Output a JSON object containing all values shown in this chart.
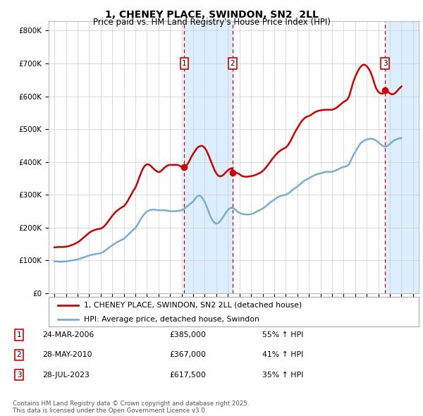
{
  "title": "1, CHENEY PLACE, SWINDON, SN2  2LL",
  "subtitle": "Price paid vs. HM Land Registry's House Price Index (HPI)",
  "ylabel_ticks": [
    "£0",
    "£100K",
    "£200K",
    "£300K",
    "£400K",
    "£500K",
    "£600K",
    "£700K",
    "£800K"
  ],
  "ylim": [
    0,
    830000
  ],
  "xlim_start": 1995,
  "xlim_end": 2026,
  "background_color": "#ffffff",
  "grid_color": "#cccccc",
  "hpi_line_color": "#7aadd4",
  "price_line_color": "#cc0000",
  "shaded_region_color": "#ddeeff",
  "transactions": [
    {
      "label": "1",
      "date_str": "24-MAR-2006",
      "price": 385000,
      "pct": "55%",
      "x": 2006.23
    },
    {
      "label": "2",
      "date_str": "28-MAY-2010",
      "price": 367000,
      "pct": "41%",
      "x": 2010.41
    },
    {
      "label": "3",
      "date_str": "28-JUL-2023",
      "price": 617500,
      "pct": "35%",
      "x": 2023.58
    }
  ],
  "legend_label_price": "1, CHENEY PLACE, SWINDON, SN2 2LL (detached house)",
  "legend_label_hpi": "HPI: Average price, detached house, Swindon",
  "footnote": "Contains HM Land Registry data © Crown copyright and database right 2025.\nThis data is licensed under the Open Government Licence v3.0.",
  "hpi_data": [
    [
      1995.0,
      97000
    ],
    [
      1995.17,
      97000
    ],
    [
      1995.33,
      96500
    ],
    [
      1995.5,
      96000
    ],
    [
      1995.67,
      96000
    ],
    [
      1995.83,
      96500
    ],
    [
      1996.0,
      97000
    ],
    [
      1996.17,
      98000
    ],
    [
      1996.33,
      99000
    ],
    [
      1996.5,
      100000
    ],
    [
      1996.67,
      101000
    ],
    [
      1996.83,
      102000
    ],
    [
      1997.0,
      103000
    ],
    [
      1997.17,
      105000
    ],
    [
      1997.33,
      107000
    ],
    [
      1997.5,
      109000
    ],
    [
      1997.67,
      111000
    ],
    [
      1997.83,
      113000
    ],
    [
      1998.0,
      115000
    ],
    [
      1998.17,
      117000
    ],
    [
      1998.33,
      118000
    ],
    [
      1998.5,
      119000
    ],
    [
      1998.67,
      120000
    ],
    [
      1998.83,
      121000
    ],
    [
      1999.0,
      122000
    ],
    [
      1999.17,
      125000
    ],
    [
      1999.33,
      129000
    ],
    [
      1999.5,
      133000
    ],
    [
      1999.67,
      138000
    ],
    [
      1999.83,
      142000
    ],
    [
      2000.0,
      146000
    ],
    [
      2000.17,
      150000
    ],
    [
      2000.33,
      154000
    ],
    [
      2000.5,
      157000
    ],
    [
      2000.67,
      160000
    ],
    [
      2000.83,
      163000
    ],
    [
      2001.0,
      166000
    ],
    [
      2001.17,
      171000
    ],
    [
      2001.33,
      177000
    ],
    [
      2001.5,
      183000
    ],
    [
      2001.67,
      189000
    ],
    [
      2001.83,
      194000
    ],
    [
      2002.0,
      199000
    ],
    [
      2002.17,
      208000
    ],
    [
      2002.33,
      218000
    ],
    [
      2002.5,
      228000
    ],
    [
      2002.67,
      237000
    ],
    [
      2002.83,
      244000
    ],
    [
      2003.0,
      249000
    ],
    [
      2003.17,
      252000
    ],
    [
      2003.33,
      254000
    ],
    [
      2003.5,
      255000
    ],
    [
      2003.67,
      255000
    ],
    [
      2003.83,
      254000
    ],
    [
      2004.0,
      253000
    ],
    [
      2004.17,
      253000
    ],
    [
      2004.33,
      253000
    ],
    [
      2004.5,
      253000
    ],
    [
      2004.67,
      252000
    ],
    [
      2004.83,
      251000
    ],
    [
      2005.0,
      250000
    ],
    [
      2005.17,
      250000
    ],
    [
      2005.33,
      250000
    ],
    [
      2005.5,
      250000
    ],
    [
      2005.67,
      251000
    ],
    [
      2005.83,
      252000
    ],
    [
      2006.0,
      253000
    ],
    [
      2006.17,
      256000
    ],
    [
      2006.33,
      260000
    ],
    [
      2006.5,
      265000
    ],
    [
      2006.67,
      270000
    ],
    [
      2006.83,
      275000
    ],
    [
      2007.0,
      280000
    ],
    [
      2007.17,
      288000
    ],
    [
      2007.33,
      295000
    ],
    [
      2007.5,
      298000
    ],
    [
      2007.67,
      295000
    ],
    [
      2007.83,
      288000
    ],
    [
      2008.0,
      278000
    ],
    [
      2008.17,
      264000
    ],
    [
      2008.33,
      248000
    ],
    [
      2008.5,
      233000
    ],
    [
      2008.67,
      222000
    ],
    [
      2008.83,
      215000
    ],
    [
      2009.0,
      212000
    ],
    [
      2009.17,
      214000
    ],
    [
      2009.33,
      220000
    ],
    [
      2009.5,
      228000
    ],
    [
      2009.67,
      237000
    ],
    [
      2009.83,
      246000
    ],
    [
      2010.0,
      254000
    ],
    [
      2010.17,
      259000
    ],
    [
      2010.33,
      261000
    ],
    [
      2010.5,
      259000
    ],
    [
      2010.67,
      254000
    ],
    [
      2010.83,
      249000
    ],
    [
      2011.0,
      245000
    ],
    [
      2011.17,
      242000
    ],
    [
      2011.33,
      241000
    ],
    [
      2011.5,
      240000
    ],
    [
      2011.67,
      240000
    ],
    [
      2011.83,
      240000
    ],
    [
      2012.0,
      241000
    ],
    [
      2012.17,
      243000
    ],
    [
      2012.33,
      246000
    ],
    [
      2012.5,
      249000
    ],
    [
      2012.67,
      252000
    ],
    [
      2012.83,
      255000
    ],
    [
      2013.0,
      258000
    ],
    [
      2013.17,
      262000
    ],
    [
      2013.33,
      267000
    ],
    [
      2013.5,
      272000
    ],
    [
      2013.67,
      277000
    ],
    [
      2013.83,
      281000
    ],
    [
      2014.0,
      285000
    ],
    [
      2014.17,
      289000
    ],
    [
      2014.33,
      293000
    ],
    [
      2014.5,
      296000
    ],
    [
      2014.67,
      298000
    ],
    [
      2014.83,
      299000
    ],
    [
      2015.0,
      300000
    ],
    [
      2015.17,
      303000
    ],
    [
      2015.33,
      307000
    ],
    [
      2015.5,
      312000
    ],
    [
      2015.67,
      317000
    ],
    [
      2015.83,
      321000
    ],
    [
      2016.0,
      325000
    ],
    [
      2016.17,
      330000
    ],
    [
      2016.33,
      335000
    ],
    [
      2016.5,
      340000
    ],
    [
      2016.67,
      344000
    ],
    [
      2016.83,
      347000
    ],
    [
      2017.0,
      350000
    ],
    [
      2017.17,
      354000
    ],
    [
      2017.33,
      357000
    ],
    [
      2017.5,
      360000
    ],
    [
      2017.67,
      362000
    ],
    [
      2017.83,
      364000
    ],
    [
      2018.0,
      365000
    ],
    [
      2018.17,
      367000
    ],
    [
      2018.33,
      369000
    ],
    [
      2018.5,
      370000
    ],
    [
      2018.67,
      370000
    ],
    [
      2018.83,
      370000
    ],
    [
      2019.0,
      370000
    ],
    [
      2019.17,
      372000
    ],
    [
      2019.33,
      374000
    ],
    [
      2019.5,
      377000
    ],
    [
      2019.67,
      380000
    ],
    [
      2019.83,
      383000
    ],
    [
      2020.0,
      385000
    ],
    [
      2020.17,
      386000
    ],
    [
      2020.33,
      388000
    ],
    [
      2020.5,
      395000
    ],
    [
      2020.67,
      408000
    ],
    [
      2020.83,
      420000
    ],
    [
      2021.0,
      430000
    ],
    [
      2021.17,
      440000
    ],
    [
      2021.33,
      450000
    ],
    [
      2021.5,
      458000
    ],
    [
      2021.67,
      463000
    ],
    [
      2021.83,
      466000
    ],
    [
      2022.0,
      468000
    ],
    [
      2022.17,
      470000
    ],
    [
      2022.33,
      471000
    ],
    [
      2022.5,
      470000
    ],
    [
      2022.67,
      468000
    ],
    [
      2022.83,
      465000
    ],
    [
      2023.0,
      460000
    ],
    [
      2023.17,
      455000
    ],
    [
      2023.33,
      450000
    ],
    [
      2023.5,
      447000
    ],
    [
      2023.67,
      447000
    ],
    [
      2023.83,
      450000
    ],
    [
      2024.0,
      455000
    ],
    [
      2024.17,
      460000
    ],
    [
      2024.33,
      465000
    ],
    [
      2024.5,
      468000
    ],
    [
      2024.67,
      470000
    ],
    [
      2024.83,
      472000
    ],
    [
      2025.0,
      473000
    ]
  ],
  "price_data": [
    [
      1995.0,
      140000
    ],
    [
      1995.17,
      140000
    ],
    [
      1995.33,
      141000
    ],
    [
      1995.5,
      141000
    ],
    [
      1995.67,
      141000
    ],
    [
      1995.83,
      141000
    ],
    [
      1996.0,
      142000
    ],
    [
      1996.17,
      143000
    ],
    [
      1996.33,
      145000
    ],
    [
      1996.5,
      147000
    ],
    [
      1996.67,
      149000
    ],
    [
      1996.83,
      152000
    ],
    [
      1997.0,
      155000
    ],
    [
      1997.17,
      159000
    ],
    [
      1997.33,
      164000
    ],
    [
      1997.5,
      169000
    ],
    [
      1997.67,
      174000
    ],
    [
      1997.83,
      179000
    ],
    [
      1998.0,
      184000
    ],
    [
      1998.17,
      188000
    ],
    [
      1998.33,
      191000
    ],
    [
      1998.5,
      193000
    ],
    [
      1998.67,
      195000
    ],
    [
      1998.83,
      196000
    ],
    [
      1999.0,
      197000
    ],
    [
      1999.17,
      200000
    ],
    [
      1999.33,
      205000
    ],
    [
      1999.5,
      212000
    ],
    [
      1999.67,
      220000
    ],
    [
      1999.83,
      228000
    ],
    [
      2000.0,
      236000
    ],
    [
      2000.17,
      243000
    ],
    [
      2000.33,
      249000
    ],
    [
      2000.5,
      254000
    ],
    [
      2000.67,
      258000
    ],
    [
      2000.83,
      262000
    ],
    [
      2001.0,
      265000
    ],
    [
      2001.17,
      272000
    ],
    [
      2001.33,
      281000
    ],
    [
      2001.5,
      292000
    ],
    [
      2001.67,
      303000
    ],
    [
      2001.83,
      313000
    ],
    [
      2002.0,
      322000
    ],
    [
      2002.17,
      336000
    ],
    [
      2002.33,
      352000
    ],
    [
      2002.5,
      368000
    ],
    [
      2002.67,
      381000
    ],
    [
      2002.83,
      389000
    ],
    [
      2003.0,
      393000
    ],
    [
      2003.17,
      392000
    ],
    [
      2003.33,
      388000
    ],
    [
      2003.5,
      382000
    ],
    [
      2003.67,
      376000
    ],
    [
      2003.83,
      372000
    ],
    [
      2004.0,
      369000
    ],
    [
      2004.17,
      371000
    ],
    [
      2004.33,
      376000
    ],
    [
      2004.5,
      382000
    ],
    [
      2004.67,
      387000
    ],
    [
      2004.83,
      390000
    ],
    [
      2005.0,
      391000
    ],
    [
      2005.17,
      391000
    ],
    [
      2005.33,
      391000
    ],
    [
      2005.5,
      391000
    ],
    [
      2005.67,
      391000
    ],
    [
      2005.83,
      388000
    ],
    [
      2006.0,
      385000
    ],
    [
      2006.23,
      385000
    ],
    [
      2006.33,
      387000
    ],
    [
      2006.5,
      393000
    ],
    [
      2006.67,
      403000
    ],
    [
      2006.83,
      415000
    ],
    [
      2007.0,
      425000
    ],
    [
      2007.17,
      434000
    ],
    [
      2007.33,
      442000
    ],
    [
      2007.5,
      447000
    ],
    [
      2007.67,
      449000
    ],
    [
      2007.83,
      448000
    ],
    [
      2008.0,
      443000
    ],
    [
      2008.17,
      433000
    ],
    [
      2008.33,
      420000
    ],
    [
      2008.5,
      405000
    ],
    [
      2008.67,
      390000
    ],
    [
      2008.83,
      376000
    ],
    [
      2009.0,
      365000
    ],
    [
      2009.17,
      358000
    ],
    [
      2009.33,
      356000
    ],
    [
      2009.5,
      358000
    ],
    [
      2009.67,
      363000
    ],
    [
      2009.83,
      369000
    ],
    [
      2010.0,
      375000
    ],
    [
      2010.17,
      379000
    ],
    [
      2010.33,
      381000
    ],
    [
      2010.41,
      367000
    ],
    [
      2010.5,
      370000
    ],
    [
      2010.67,
      368000
    ],
    [
      2011.0,
      363000
    ],
    [
      2011.17,
      358000
    ],
    [
      2011.33,
      356000
    ],
    [
      2011.5,
      355000
    ],
    [
      2011.67,
      355000
    ],
    [
      2011.83,
      356000
    ],
    [
      2012.0,
      357000
    ],
    [
      2012.17,
      358000
    ],
    [
      2012.33,
      360000
    ],
    [
      2012.5,
      362000
    ],
    [
      2012.67,
      365000
    ],
    [
      2012.83,
      368000
    ],
    [
      2013.0,
      372000
    ],
    [
      2013.17,
      378000
    ],
    [
      2013.33,
      385000
    ],
    [
      2013.5,
      393000
    ],
    [
      2013.67,
      401000
    ],
    [
      2013.83,
      409000
    ],
    [
      2014.0,
      416000
    ],
    [
      2014.17,
      423000
    ],
    [
      2014.33,
      429000
    ],
    [
      2014.5,
      434000
    ],
    [
      2014.67,
      438000
    ],
    [
      2014.83,
      441000
    ],
    [
      2015.0,
      444000
    ],
    [
      2015.17,
      450000
    ],
    [
      2015.33,
      459000
    ],
    [
      2015.5,
      470000
    ],
    [
      2015.67,
      482000
    ],
    [
      2015.83,
      493000
    ],
    [
      2016.0,
      503000
    ],
    [
      2016.17,
      513000
    ],
    [
      2016.33,
      522000
    ],
    [
      2016.5,
      529000
    ],
    [
      2016.67,
      535000
    ],
    [
      2016.83,
      538000
    ],
    [
      2017.0,
      540000
    ],
    [
      2017.17,
      543000
    ],
    [
      2017.33,
      547000
    ],
    [
      2017.5,
      551000
    ],
    [
      2017.67,
      554000
    ],
    [
      2017.83,
      556000
    ],
    [
      2018.0,
      557000
    ],
    [
      2018.17,
      558000
    ],
    [
      2018.33,
      559000
    ],
    [
      2018.5,
      559000
    ],
    [
      2018.67,
      559000
    ],
    [
      2018.83,
      559000
    ],
    [
      2019.0,
      559000
    ],
    [
      2019.17,
      561000
    ],
    [
      2019.33,
      564000
    ],
    [
      2019.5,
      568000
    ],
    [
      2019.67,
      573000
    ],
    [
      2019.83,
      578000
    ],
    [
      2020.0,
      583000
    ],
    [
      2020.17,
      586000
    ],
    [
      2020.33,
      590000
    ],
    [
      2020.5,
      602000
    ],
    [
      2020.67,
      623000
    ],
    [
      2020.83,
      643000
    ],
    [
      2021.0,
      659000
    ],
    [
      2021.17,
      672000
    ],
    [
      2021.33,
      683000
    ],
    [
      2021.5,
      691000
    ],
    [
      2021.67,
      696000
    ],
    [
      2021.83,
      696000
    ],
    [
      2022.0,
      692000
    ],
    [
      2022.17,
      684000
    ],
    [
      2022.33,
      674000
    ],
    [
      2022.5,
      658000
    ],
    [
      2022.67,
      638000
    ],
    [
      2022.83,
      623000
    ],
    [
      2023.0,
      614000
    ],
    [
      2023.17,
      609000
    ],
    [
      2023.33,
      608000
    ],
    [
      2023.5,
      610000
    ],
    [
      2023.58,
      617500
    ],
    [
      2023.67,
      617000
    ],
    [
      2023.83,
      614000
    ],
    [
      2024.0,
      609000
    ],
    [
      2024.17,
      606000
    ],
    [
      2024.33,
      607000
    ],
    [
      2024.5,
      611000
    ],
    [
      2024.67,
      618000
    ],
    [
      2024.83,
      624000
    ],
    [
      2025.0,
      630000
    ]
  ]
}
